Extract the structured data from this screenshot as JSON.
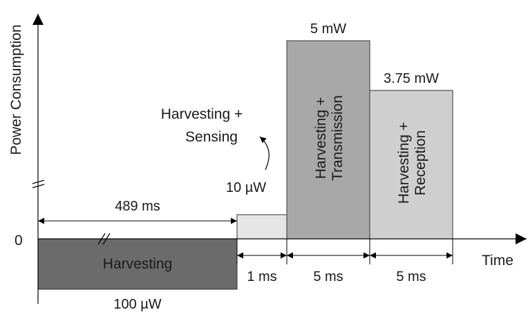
{
  "axes": {
    "y_label": "Power Consumption",
    "x_label": "Time",
    "zero_label": "0"
  },
  "blocks": {
    "harvesting": {
      "label": "Harvesting",
      "power": "100 µW",
      "color": "#6b6b6b"
    },
    "sensing": {
      "label_line1": "Harvesting +",
      "label_line2": "Sensing",
      "power": "10 µW",
      "color": "#e6e6e6"
    },
    "transmission": {
      "label_line1": "Harvesting +",
      "label_line2": "Transmission",
      "power": "5 mW",
      "color": "#a8a8a8"
    },
    "reception": {
      "label_line1": "Harvesting +",
      "label_line2": "Reception",
      "power": "3.75 mW",
      "color": "#cfcfcf"
    }
  },
  "durations": {
    "harvesting": "489 ms",
    "sensing": "1 ms",
    "transmission": "5 ms",
    "reception": "5 ms"
  }
}
